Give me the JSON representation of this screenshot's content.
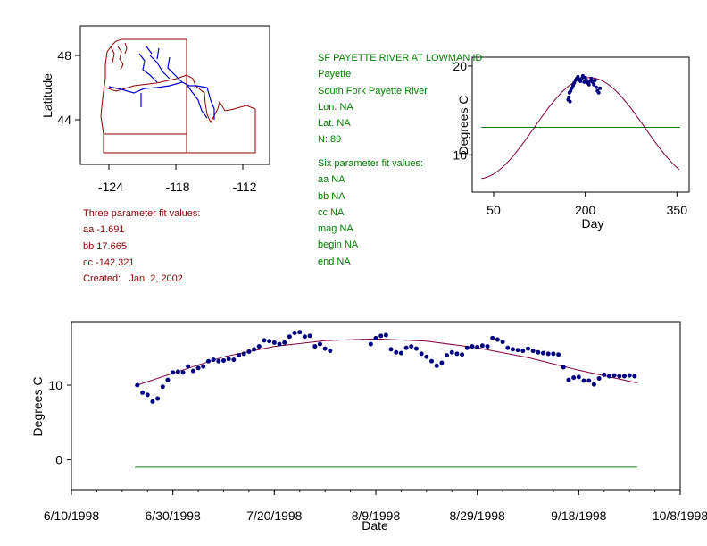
{
  "map": {
    "ylabel": "Latitude",
    "y_ticks": [
      "48",
      "44"
    ],
    "x_ticks": [
      "-124",
      "-118",
      "-112"
    ],
    "colors": {
      "boundary": "#8B0000",
      "rivers": "#0000CD"
    }
  },
  "params_three": {
    "title": "Three parameter fit values:",
    "aa": "aa -1.691",
    "bb": "bb 17.665",
    "cc": "cc -142.321",
    "created": "Created:   Jan. 2, 2002"
  },
  "station": {
    "title": "SF PAYETTE RIVER AT LOWMAN ID",
    "basin": "Payette",
    "river": "South Fork Payette River",
    "lon": "Lon. NA",
    "lat": "Lat. NA",
    "n": "N: 89"
  },
  "params_six": {
    "title": "Six parameter fit values:",
    "aa": "aa NA",
    "bb": "bb NA",
    "cc": "cc NA",
    "mag": "mag NA",
    "begin": "begin NA",
    "end": "end NA"
  },
  "chart_data": [
    {
      "type": "scatter",
      "name": "annual-fit",
      "title": "",
      "xlabel": "Day",
      "ylabel": "Degrees C",
      "xlim": [
        15,
        370
      ],
      "ylim": [
        5.8,
        21
      ],
      "x_ticks": [
        50,
        200,
        350
      ],
      "y_ticks": [
        10,
        20
      ],
      "fit_curve": {
        "mean": 13.0,
        "amplitude": 5.7,
        "peak_day": 207,
        "color": "#800040"
      },
      "mean_line": {
        "y": 13.1,
        "x_range": [
          30,
          355
        ],
        "color": "#008000"
      },
      "points_color": "#000080",
      "x": [
        172,
        173,
        174,
        175,
        176,
        178,
        180,
        182,
        184,
        186,
        188,
        190,
        192,
        194,
        196,
        198,
        200,
        202,
        204,
        206,
        208,
        210,
        212,
        214,
        216,
        218,
        220,
        222,
        224
      ],
      "y": [
        16.2,
        16.5,
        17.0,
        16.0,
        17.2,
        17.5,
        17.8,
        18.1,
        18.4,
        18.6,
        18.8,
        18.5,
        18.3,
        18.6,
        18.9,
        18.2,
        18.7,
        18.4,
        18.1,
        17.9,
        18.3,
        18.6,
        18.2,
        17.9,
        18.4,
        17.6,
        17.2,
        17.0,
        17.5
      ]
    },
    {
      "type": "scatter",
      "name": "daily-timeseries",
      "title": "",
      "xlabel": "Date",
      "ylabel": "Degrees C",
      "xlim": [
        0,
        120
      ],
      "ylim": [
        -4,
        18.5
      ],
      "x_ticks": [
        0,
        20,
        40,
        60,
        80,
        100,
        120
      ],
      "x_tick_labels": [
        "6/10/1998",
        "6/30/1998",
        "7/20/1998",
        "8/9/1998",
        "8/29/1998",
        "9/18/1998",
        "10/8/1998"
      ],
      "y_ticks": [
        0,
        10
      ],
      "x_minor_step": 5,
      "fit_curve": {
        "points": [
          [
            12.5,
            9.9
          ],
          [
            20,
            11.6
          ],
          [
            30,
            13.8
          ],
          [
            40,
            15.2
          ],
          [
            50,
            15.95
          ],
          [
            60,
            16.2
          ],
          [
            70,
            15.9
          ],
          [
            80,
            15.0
          ],
          [
            90,
            13.7
          ],
          [
            100,
            12.0
          ],
          [
            111.5,
            10.3
          ]
        ],
        "color": "#800040"
      },
      "zero_line": {
        "y": -1.0,
        "x_range": [
          12.5,
          111.5
        ],
        "color": "#008000"
      },
      "points_color": "#000080",
      "x": [
        13,
        14,
        15,
        16,
        17,
        18,
        19,
        20,
        21,
        22,
        23,
        24,
        25,
        26,
        27,
        28,
        29,
        30,
        31,
        32,
        33,
        34,
        35,
        36,
        37,
        38,
        39,
        40,
        41,
        42,
        43,
        44,
        45,
        46,
        47,
        48,
        49,
        50,
        51,
        59,
        60,
        61,
        62,
        63,
        64,
        65,
        66,
        67,
        68,
        69,
        70,
        71,
        72,
        73,
        74,
        75,
        76,
        77,
        78,
        79,
        80,
        81,
        82,
        83,
        84,
        85,
        86,
        87,
        88,
        89,
        90,
        91,
        92,
        93,
        94,
        95,
        96,
        97,
        98,
        99,
        100,
        101,
        102,
        103,
        104,
        105,
        106,
        107,
        108,
        109,
        110,
        111
      ],
      "y": [
        10.0,
        9.0,
        8.7,
        7.8,
        8.2,
        9.8,
        10.7,
        11.7,
        11.8,
        11.7,
        12.5,
        11.9,
        12.3,
        12.5,
        13.2,
        13.4,
        13.2,
        13.3,
        13.5,
        13.4,
        14.0,
        14.2,
        14.5,
        14.8,
        15.2,
        16.0,
        15.9,
        15.7,
        15.5,
        15.7,
        16.5,
        17.0,
        17.1,
        16.5,
        16.6,
        15.2,
        15.5,
        14.9,
        14.6,
        15.5,
        16.3,
        16.6,
        16.7,
        14.8,
        14.4,
        14.3,
        15.0,
        15.2,
        14.9,
        14.2,
        13.8,
        13.2,
        12.6,
        13.0,
        14.0,
        14.4,
        14.2,
        14.1,
        15.0,
        15.2,
        15.1,
        15.3,
        15.2,
        16.3,
        16.1,
        15.8,
        15.0,
        14.8,
        14.7,
        14.6,
        14.9,
        14.6,
        14.4,
        14.3,
        14.2,
        14.2,
        14.1,
        12.4,
        10.7,
        11.0,
        11.1,
        10.6,
        10.6,
        10.1,
        10.9,
        11.4,
        11.2,
        11.3,
        11.2,
        11.2,
        11.3,
        11.2
      ]
    }
  ]
}
